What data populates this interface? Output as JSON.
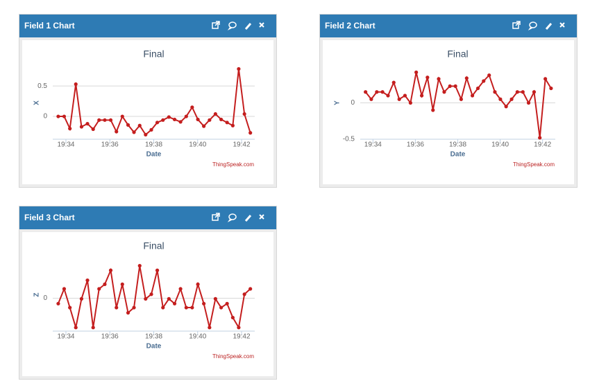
{
  "panels": [
    {
      "header": "Field 1 Chart"
    },
    {
      "header": "Field 2 Chart"
    },
    {
      "header": "Field 3 Chart"
    }
  ],
  "chart_data": [
    {
      "type": "line",
      "title": "Final",
      "x_label": "Date",
      "y_label": "X",
      "credit": "ThingSpeak.com",
      "color": "#c41e1e",
      "x": [
        33.65,
        33.92,
        34.18,
        34.45,
        34.71,
        34.98,
        35.24,
        35.51,
        35.77,
        36.04,
        36.3,
        36.57,
        36.83,
        37.1,
        37.36,
        37.63,
        37.89,
        38.16,
        38.42,
        38.69,
        38.95,
        39.22,
        39.48,
        39.75,
        40.01,
        40.28,
        40.54,
        40.81,
        41.07,
        41.34,
        41.6,
        41.87,
        42.13,
        42.4
      ],
      "values": [
        0,
        0,
        -0.2,
        0.53,
        -0.17,
        -0.12,
        -0.21,
        -0.06,
        -0.06,
        -0.06,
        -0.25,
        0,
        -0.14,
        -0.26,
        -0.15,
        -0.3,
        -0.22,
        -0.1,
        -0.06,
        -0.01,
        -0.05,
        -0.09,
        0,
        0.15,
        -0.05,
        -0.16,
        -0.06,
        0.04,
        -0.05,
        -0.1,
        -0.15,
        0.78,
        0.04,
        -0.27
      ],
      "xlim": [
        33.4,
        42.6
      ],
      "xticks": [
        {
          "value": 34,
          "label": "19:34"
        },
        {
          "value": 36,
          "label": "19:36"
        },
        {
          "value": 38,
          "label": "19:38"
        },
        {
          "value": 40,
          "label": "19:40"
        },
        {
          "value": 42,
          "label": "19:42"
        }
      ],
      "ylim": [
        -0.375,
        0.82
      ],
      "yticks": [
        0,
        0.5
      ],
      "grid": true
    },
    {
      "type": "line",
      "title": "Final",
      "x_label": "Date",
      "y_label": "Y",
      "credit": "ThingSpeak.com",
      "color": "#c41e1e",
      "x": [
        33.65,
        33.92,
        34.18,
        34.45,
        34.71,
        34.98,
        35.24,
        35.51,
        35.77,
        36.04,
        36.3,
        36.57,
        36.83,
        37.1,
        37.36,
        37.63,
        37.89,
        38.16,
        38.42,
        38.69,
        38.95,
        39.22,
        39.48,
        39.75,
        40.01,
        40.28,
        40.54,
        40.81,
        41.07,
        41.34,
        41.6,
        41.87,
        42.13,
        42.4
      ],
      "values": [
        0.15,
        0.05,
        0.15,
        0.15,
        0.1,
        0.28,
        0.05,
        0.1,
        0,
        0.42,
        0.1,
        0.35,
        -0.1,
        0.33,
        0.15,
        0.23,
        0.23,
        0.05,
        0.34,
        0.1,
        0.2,
        0.3,
        0.38,
        0.15,
        0.05,
        -0.05,
        0.05,
        0.15,
        0.15,
        0,
        0.15,
        -0.48,
        0.33,
        0.2
      ],
      "xlim": [
        33.4,
        42.6
      ],
      "xticks": [
        {
          "value": 34,
          "label": "19:34"
        },
        {
          "value": 36,
          "label": "19:36"
        },
        {
          "value": 38,
          "label": "19:38"
        },
        {
          "value": 40,
          "label": "19:40"
        },
        {
          "value": 42,
          "label": "19:42"
        }
      ],
      "ylim": [
        -0.5,
        0.5
      ],
      "yticks": [
        -0.5,
        0
      ],
      "grid": true
    },
    {
      "type": "line",
      "title": "Final",
      "x_label": "Date",
      "y_label": "Z",
      "credit": "ThingSpeak.com",
      "color": "#c41e1e",
      "x": [
        33.65,
        33.92,
        34.18,
        34.45,
        34.71,
        34.98,
        35.24,
        35.51,
        35.77,
        36.04,
        36.3,
        36.57,
        36.83,
        37.1,
        37.36,
        37.63,
        37.89,
        38.16,
        38.42,
        38.69,
        38.95,
        39.22,
        39.48,
        39.75,
        40.01,
        40.28,
        40.54,
        40.81,
        41.07,
        41.34,
        41.6,
        41.87,
        42.13,
        42.4
      ],
      "values": [
        -0.27,
        0.47,
        -0.47,
        -1.47,
        -0.03,
        0.9,
        -1.47,
        0.47,
        0.7,
        1.4,
        -0.47,
        0.7,
        -0.73,
        -0.47,
        1.63,
        -0.03,
        0.2,
        1.4,
        -0.47,
        -0.03,
        -0.27,
        0.47,
        -0.47,
        -0.47,
        0.7,
        -0.27,
        -1.47,
        -0.03,
        -0.47,
        -0.27,
        -0.97,
        -1.47,
        0.2,
        0.47
      ],
      "xlim": [
        33.4,
        42.6
      ],
      "xticks": [
        {
          "value": 34,
          "label": "19:34"
        },
        {
          "value": 36,
          "label": "19:36"
        },
        {
          "value": 38,
          "label": "19:38"
        },
        {
          "value": 40,
          "label": "19:40"
        },
        {
          "value": 42,
          "label": "19:42"
        }
      ],
      "ylim": [
        -1.65,
        2.0
      ],
      "yticks": [
        0
      ],
      "grid": true
    }
  ]
}
